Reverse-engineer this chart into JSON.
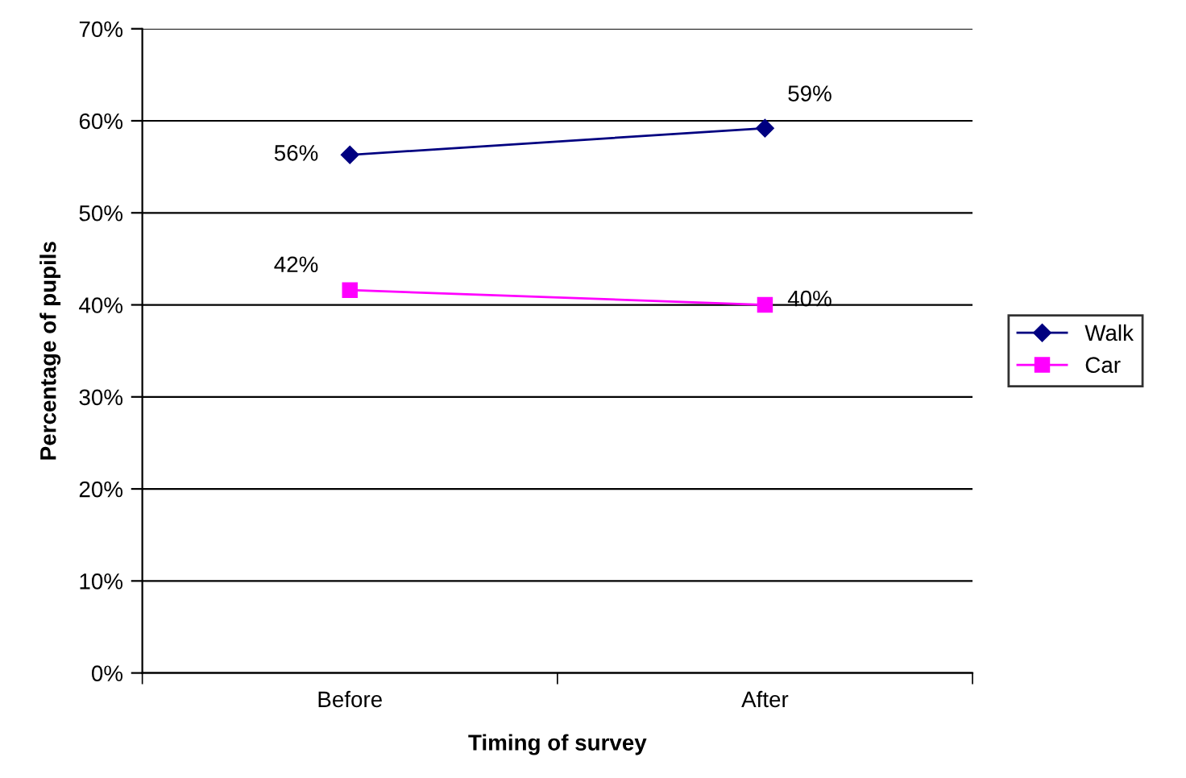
{
  "chart_data": {
    "type": "line",
    "xlabel": "Timing of survey",
    "ylabel": "Percentage of pupils",
    "categories": [
      "Before",
      "After"
    ],
    "series": [
      {
        "name": "Walk",
        "color": "#000080",
        "marker": "diamond",
        "values": [
          56.3,
          59.2
        ],
        "value_labels": [
          "56%",
          "59%"
        ]
      },
      {
        "name": "Car",
        "color": "#ff00ff",
        "marker": "square",
        "values": [
          41.6,
          40.0
        ],
        "value_labels": [
          "42%",
          "40%"
        ]
      }
    ],
    "ylim": [
      0,
      70
    ],
    "yticks": [
      {
        "value": 0,
        "label": "0%"
      },
      {
        "value": 10,
        "label": "10%"
      },
      {
        "value": 20,
        "label": "20%"
      },
      {
        "value": 30,
        "label": "30%"
      },
      {
        "value": 40,
        "label": "40%"
      },
      {
        "value": 50,
        "label": "50%"
      },
      {
        "value": 60,
        "label": "60%"
      },
      {
        "value": 70,
        "label": "70%"
      }
    ],
    "grid": "y",
    "legend": "right",
    "line_style": "solid"
  }
}
